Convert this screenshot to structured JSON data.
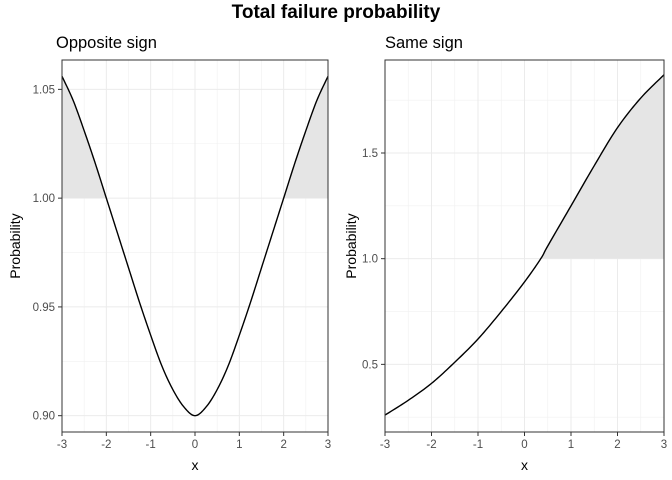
{
  "title": "Total failure probability",
  "chart_data": [
    {
      "type": "line",
      "title": "Opposite sign",
      "xlabel": "x",
      "ylabel": "Probability",
      "x_ticks": [
        "-3",
        "-2",
        "-1",
        "0",
        "1",
        "2",
        "3"
      ],
      "y_ticks": [
        "0.90",
        "0.95",
        "1.00",
        "1.05"
      ],
      "xlim": [
        -3,
        3
      ],
      "ylim": [
        0.8925,
        1.0635
      ],
      "threshold": 1.0,
      "shade": "area between curve and 1.00 where curve exceeds 1.00",
      "shade_color": "#e5e5e5",
      "line_color": "#000000",
      "grid": true,
      "series": [
        {
          "x": [
            -3,
            -2.75,
            -2.5,
            -2.25,
            -2,
            -1.75,
            -1.5,
            -1.25,
            -1,
            -0.75,
            -0.5,
            -0.25,
            0,
            0.25,
            0.5,
            0.75,
            1,
            1.25,
            1.5,
            1.75,
            2,
            2.25,
            2.5,
            2.75,
            3
          ],
          "y": [
            1.056,
            1.045,
            1.031,
            1.016,
            1.0,
            0.984,
            0.968,
            0.952,
            0.937,
            0.923,
            0.912,
            0.904,
            0.9,
            0.904,
            0.912,
            0.923,
            0.937,
            0.952,
            0.968,
            0.984,
            1.0,
            1.016,
            1.031,
            1.045,
            1.056
          ]
        }
      ]
    },
    {
      "type": "line",
      "title": "Same sign",
      "xlabel": "x",
      "ylabel": "Probability",
      "x_ticks": [
        "-3",
        "-2",
        "-1",
        "0",
        "1",
        "2",
        "3"
      ],
      "y_ticks": [
        "0.5",
        "1.0",
        "1.5"
      ],
      "xlim": [
        -3,
        3
      ],
      "ylim": [
        0.18,
        1.94
      ],
      "threshold": 1.0,
      "shade": "area between curve and 1.0 where curve exceeds 1.0",
      "shade_color": "#e5e5e5",
      "line_color": "#000000",
      "grid": true,
      "series": [
        {
          "x": [
            -3,
            -2.5,
            -2,
            -1.5,
            -1,
            -0.5,
            0,
            0.35,
            0.5,
            1,
            1.5,
            2,
            2.5,
            3
          ],
          "y": [
            0.26,
            0.33,
            0.41,
            0.51,
            0.62,
            0.75,
            0.89,
            1.0,
            1.06,
            1.25,
            1.44,
            1.62,
            1.76,
            1.87
          ]
        }
      ]
    }
  ]
}
